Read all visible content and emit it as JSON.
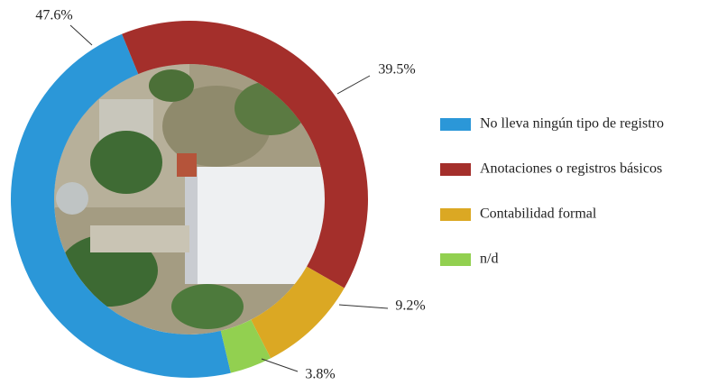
{
  "chart_data": {
    "type": "donut",
    "categories": [
      "No lleva ningún tipo de registro",
      "Anotaciones o registros básicos",
      "Contabilidad formal",
      "n/d"
    ],
    "values": [
      47.6,
      39.5,
      9.2,
      3.8
    ],
    "value_labels": [
      "47.6%",
      "39.5%",
      "9.2%",
      "3.8%"
    ],
    "colors": [
      "#2b97d8",
      "#a42f2b",
      "#dba823",
      "#92d050"
    ],
    "legend": "right"
  }
}
